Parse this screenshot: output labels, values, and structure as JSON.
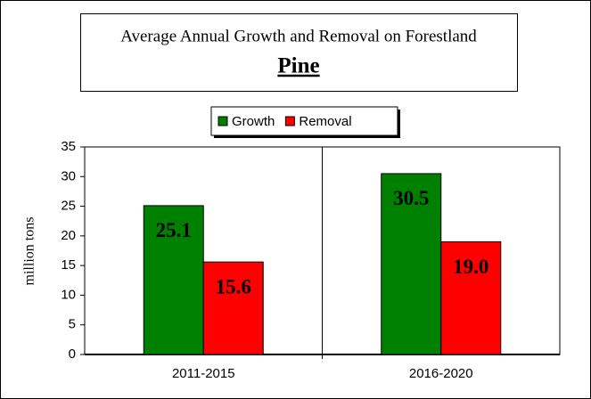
{
  "chart_data": {
    "type": "bar",
    "title": "Average Annual Growth and Removal on Forestland",
    "subtitle": "Pine",
    "y_label": "million tons",
    "categories": [
      "2011-2015",
      "2016-2020"
    ],
    "series": [
      {
        "name": "Growth",
        "color": "#008000",
        "values": [
          25.1,
          30.5
        ],
        "value_labels": [
          "25.1",
          "30.5"
        ]
      },
      {
        "name": "Removal",
        "color": "#ff0000",
        "values": [
          15.6,
          19.0
        ],
        "value_labels": [
          "15.6",
          "19.0"
        ]
      }
    ],
    "ylim": [
      0,
      35
    ],
    "yticks": [
      0,
      5,
      10,
      15,
      20,
      25,
      30,
      35
    ],
    "grid": false,
    "legend": "top"
  }
}
